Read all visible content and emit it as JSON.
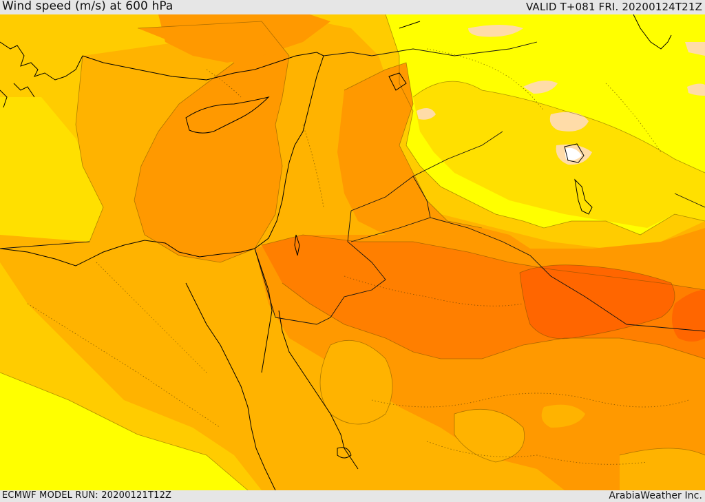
{
  "header": {
    "title": "Wind speed (m/s) at 600 hPa",
    "valid": "VALID T+081 FRI. 20200124T21Z"
  },
  "footer": {
    "model_run": "ECMWF MODEL RUN: 20200121T12Z",
    "credit": "ArabiaWeather Inc."
  },
  "colors": {
    "yellow": "#ffff00",
    "light_yellow_orange": "#ffe000",
    "gold": "#ffcc00",
    "amber": "#ffb300",
    "orange": "#ff9900",
    "dark_orange": "#ff7f00",
    "deep_orange": "#ff6600",
    "pale_peach": "#ffdca8",
    "white": "#ffffff"
  }
}
